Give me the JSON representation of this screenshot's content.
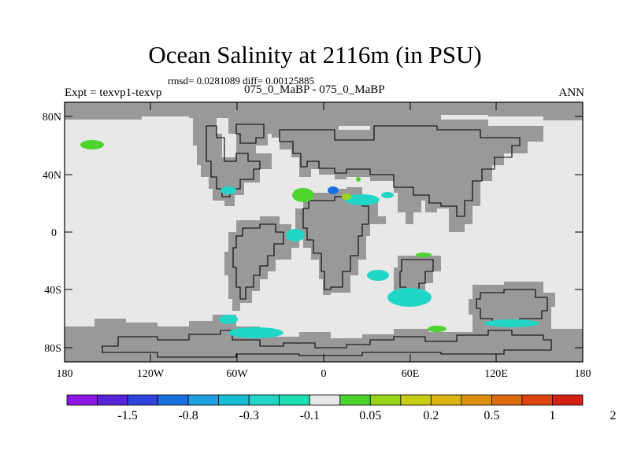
{
  "title": "Ocean Salinity at 2116m (in PSU)",
  "stats": "rmsd= 0.0281089 diff= 0.00125885",
  "experiment": "Expt = texvp1-texvp",
  "cases": "075_0_MaBP - 075_0_MaBP",
  "season": "ANN",
  "lat_ticks": [
    "80N",
    "40N",
    "0",
    "40S",
    "80S"
  ],
  "lon_ticks": [
    "180",
    "120W",
    "60W",
    "0",
    "60E",
    "120E",
    "180"
  ],
  "colorbar": {
    "colors": [
      "#8c17e8",
      "#5a23d8",
      "#2e44dc",
      "#1a6fde",
      "#1fa0e0",
      "#17bfd6",
      "#22d6c7",
      "#1fe0b2",
      "#e8e8e8",
      "#4dd42e",
      "#97d41a",
      "#c8cc12",
      "#dcb410",
      "#e09010",
      "#e06a10",
      "#de4410",
      "#d42010"
    ],
    "labels": [
      "-1.5",
      "-0.8",
      "-0.3",
      "-0.1",
      "0.05",
      "0.2",
      "0.5",
      "1",
      "2"
    ]
  },
  "map_colors": {
    "ocean": "#e8e8e8",
    "land": "#999999",
    "coast": "#000000"
  }
}
